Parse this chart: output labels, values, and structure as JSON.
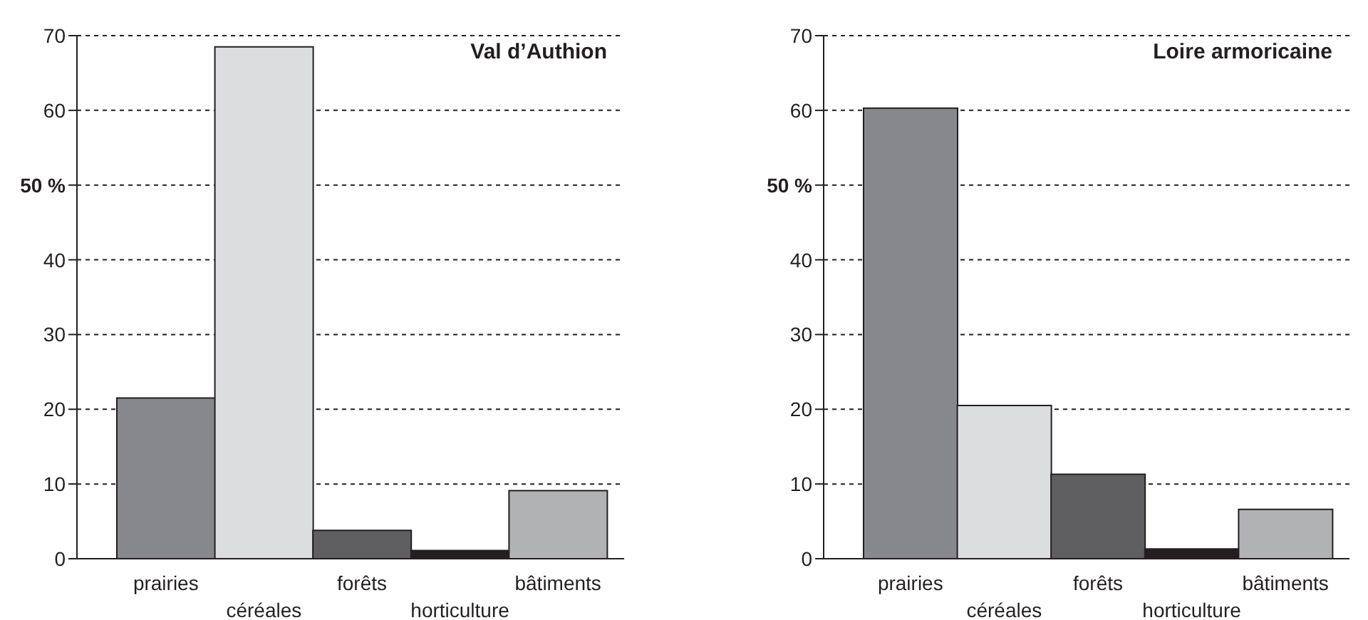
{
  "chart_data": [
    {
      "type": "bar",
      "title": "Val d’Authion",
      "categories": [
        "prairies",
        "céréales",
        "forêts",
        "horticulture",
        "bâtiments"
      ],
      "values": [
        21.5,
        68.5,
        3.8,
        1.1,
        9.1
      ],
      "colors": [
        "#87888c",
        "#dcdddf",
        "#5f5f61",
        "#231f20",
        "#b1b2b4"
      ],
      "ylim": [
        0,
        70
      ],
      "yticks": [
        0,
        10,
        20,
        30,
        40,
        {
          "value": 50,
          "label": "50 %"
        },
        60,
        70
      ],
      "grid": "y"
    },
    {
      "type": "bar",
      "title": "Loire armoricaine",
      "categories": [
        "prairies",
        "céréales",
        "forêts",
        "horticulture",
        "bâtiments"
      ],
      "values": [
        60.3,
        20.5,
        11.3,
        1.3,
        6.6
      ],
      "colors": [
        "#87888c",
        "#dcdddf",
        "#5f5f61",
        "#231f20",
        "#b1b2b4"
      ],
      "ylim": [
        0,
        70
      ],
      "yticks": [
        0,
        10,
        20,
        30,
        40,
        {
          "value": 50,
          "label": "50 %"
        },
        60,
        70
      ],
      "grid": "y"
    }
  ]
}
